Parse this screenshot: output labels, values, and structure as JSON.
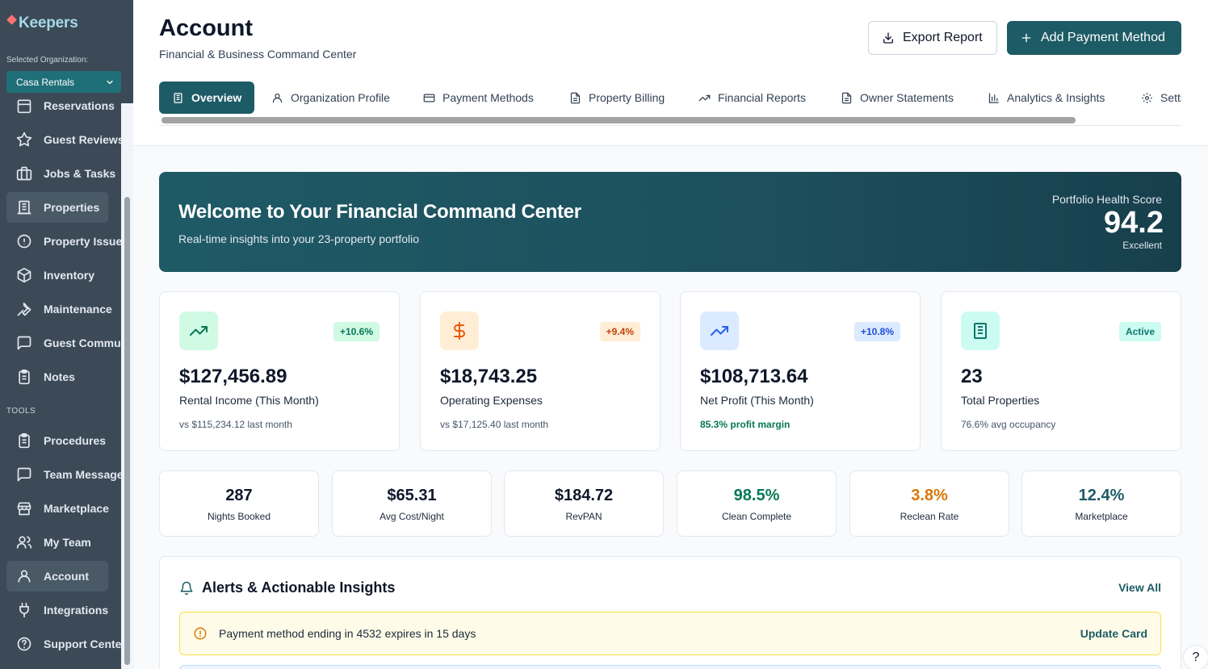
{
  "app": {
    "name": "Keepers"
  },
  "org": {
    "label": "Selected Organization:",
    "selected": "Casa Rentals"
  },
  "sidebar": {
    "items": [
      {
        "label": "Reservations",
        "icon": "calendar-icon"
      },
      {
        "label": "Guest Reviews",
        "icon": "star-icon"
      },
      {
        "label": "Jobs & Tasks",
        "icon": "briefcase-icon"
      },
      {
        "label": "Properties",
        "icon": "building-icon"
      },
      {
        "label": "Property Issues",
        "icon": "alert-circle-icon"
      },
      {
        "label": "Inventory",
        "icon": "box-icon"
      },
      {
        "label": "Maintenance",
        "icon": "wrench-icon"
      },
      {
        "label": "Guest Communications",
        "icon": "message-icon"
      },
      {
        "label": "Notes",
        "icon": "clipboard-icon"
      }
    ],
    "tools_label": "TOOLS",
    "tools": [
      {
        "label": "Procedures",
        "icon": "clipboard-list-icon"
      },
      {
        "label": "Team Messages",
        "icon": "message-square-icon"
      },
      {
        "label": "Marketplace",
        "icon": "store-icon"
      },
      {
        "label": "My Team",
        "icon": "users-icon"
      },
      {
        "label": "Account",
        "icon": "user-icon"
      },
      {
        "label": "Integrations",
        "icon": "plug-icon"
      },
      {
        "label": "Support Center",
        "icon": "help-circle-icon"
      }
    ]
  },
  "header": {
    "title": "Account",
    "subtitle": "Financial & Business Command Center",
    "export_label": "Export Report",
    "add_label": "Add Payment Method"
  },
  "tabs": [
    {
      "label": "Overview",
      "icon": "building-icon"
    },
    {
      "label": "Organization Profile",
      "icon": "user-icon"
    },
    {
      "label": "Payment Methods",
      "icon": "credit-card-icon"
    },
    {
      "label": "Property Billing",
      "icon": "file-icon"
    },
    {
      "label": "Financial Reports",
      "icon": "trending-up-icon"
    },
    {
      "label": "Owner Statements",
      "icon": "file-text-icon"
    },
    {
      "label": "Analytics & Insights",
      "icon": "bar-chart-icon"
    },
    {
      "label": "Settings",
      "icon": "gear-icon"
    }
  ],
  "banner": {
    "title": "Welcome to Your Financial Command Center",
    "subtitle": "Real-time insights into your 23-property portfolio",
    "health_label": "Portfolio Health Score",
    "health_score": "94.2",
    "health_status": "Excellent"
  },
  "cards": [
    {
      "value": "$127,456.89",
      "label": "Rental Income (This Month)",
      "note": "vs $115,234.12 last month",
      "badge": "+10.6%",
      "badge_bg": "#d1fae5",
      "badge_color": "#047857",
      "icon_bg": "#d1fae5",
      "icon_color": "#047857",
      "icon": "trending-up-icon"
    },
    {
      "value": "$18,743.25",
      "label": "Operating Expenses",
      "note": "vs $17,125.40 last month",
      "badge": "+9.4%",
      "badge_bg": "#ffedd5",
      "badge_color": "#c2410c",
      "icon_bg": "#ffedd5",
      "icon_color": "#ea580c",
      "icon": "dollar-icon"
    },
    {
      "value": "$108,713.64",
      "label": "Net Profit (This Month)",
      "note": "85.3% profit margin",
      "badge": "+10.8%",
      "badge_bg": "#dbeafe",
      "badge_color": "#1d4ed8",
      "icon_bg": "#dbeafe",
      "icon_color": "#2563eb",
      "icon": "trending-up-icon"
    },
    {
      "value": "23",
      "label": "Total Properties",
      "note": "76.6% avg occupancy",
      "badge": "Active",
      "badge_bg": "#ccfbf1",
      "badge_color": "#0f766e",
      "icon_bg": "#ccfbf1",
      "icon_color": "#0f766e",
      "icon": "building-icon"
    }
  ],
  "metrics": [
    {
      "value": "287",
      "label": "Nights Booked",
      "color": "#0f172a"
    },
    {
      "value": "$65.31",
      "label": "Avg Cost/Night",
      "color": "#0f172a"
    },
    {
      "value": "$184.72",
      "label": "RevPAN",
      "color": "#0f172a"
    },
    {
      "value": "98.5%",
      "label": "Clean Complete",
      "color": "#047857"
    },
    {
      "value": "3.8%",
      "label": "Reclean Rate",
      "color": "#d97706"
    },
    {
      "value": "12.4%",
      "label": "Marketplace",
      "color": "#1d5b66"
    }
  ],
  "alerts": {
    "title": "Alerts & Actionable Insights",
    "view_all": "View All",
    "items": [
      {
        "text": "Payment method ending in 4532 expires in 15 days",
        "action": "Update Card"
      }
    ]
  },
  "help": {
    "label": "?"
  }
}
